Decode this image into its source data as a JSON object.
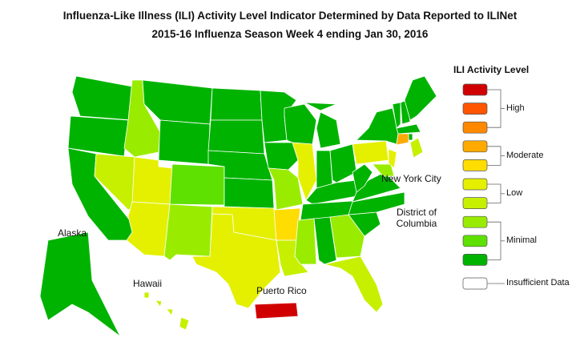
{
  "title": "Influenza-Like Illness (ILI) Activity Level Indicator Determined by Data Reported to ILINet",
  "subtitle": "2015-16  Influenza Season Week  4 ending Jan 30, 2016",
  "labels": {
    "alaska": "Alaska",
    "hawaii": "Hawaii",
    "puerto_rico": "Puerto Rico",
    "nyc": "New York City",
    "dc": "District of Columbia"
  },
  "legend": {
    "title": "ILI Activity Level",
    "colors": [
      "#00b300",
      "#5ee000",
      "#99ec00",
      "#c6f000",
      "#e4f000",
      "#ffdd00",
      "#ffaa00",
      "#ff8800",
      "#ff5500",
      "#d00000"
    ],
    "groups": [
      {
        "label": "High",
        "from": 8,
        "to": 10
      },
      {
        "label": "Moderate",
        "from": 6,
        "to": 7
      },
      {
        "label": "Low",
        "from": 4,
        "to": 5
      },
      {
        "label": "Minimal",
        "from": 1,
        "to": 3
      }
    ],
    "insufficient": {
      "label": "Insufficient Data",
      "color": "#ffffff"
    }
  },
  "state_levels": [
    1,
    1,
    1,
    3,
    4,
    1,
    1,
    5,
    5,
    2,
    3,
    1,
    1,
    1,
    1,
    5,
    5,
    1,
    1,
    3,
    6,
    4,
    1,
    5,
    1,
    1,
    1,
    1,
    1,
    3,
    1,
    3,
    4,
    1,
    1,
    1,
    1,
    5,
    3,
    5,
    1,
    1,
    1,
    1,
    1,
    7,
    1,
    4,
    null,
    1,
    4,
    10
  ]
}
